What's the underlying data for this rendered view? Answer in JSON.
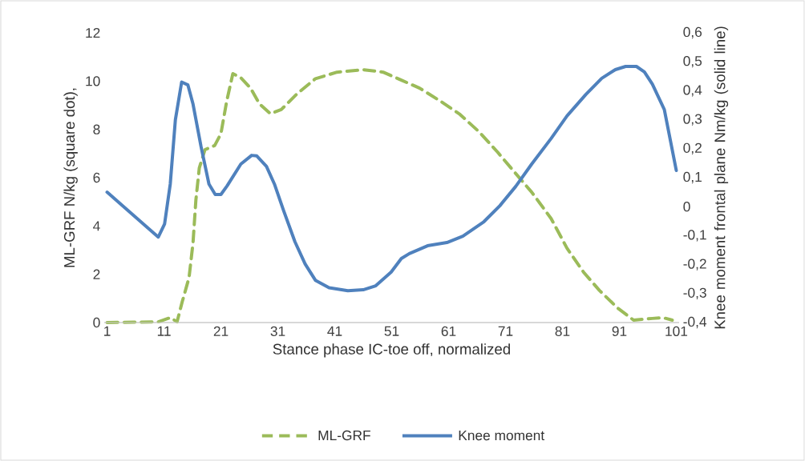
{
  "chart_data": {
    "type": "line",
    "xlabel": "Stance phase IC-toe off, normalized",
    "ylabel": "ML-GRF  N/kg (square dot),",
    "y2label": "Knee moment frontal plane Nm/kg (solid line)",
    "xlim": [
      0.5,
      101.5
    ],
    "xticks": [
      1,
      11,
      21,
      31,
      41,
      51,
      61,
      71,
      81,
      91,
      101
    ],
    "ylim": [
      0,
      12
    ],
    "yticks": [
      0,
      2,
      4,
      6,
      8,
      10,
      12
    ],
    "y2lim": [
      -0.4,
      0.6
    ],
    "y2ticks": [
      {
        "value": -0.4,
        "label": "-0,4"
      },
      {
        "value": -0.3,
        "label": "-0,3"
      },
      {
        "value": -0.2,
        "label": "-0,2"
      },
      {
        "value": -0.1,
        "label": "-0,1"
      },
      0,
      {
        "value": 0.1,
        "label": "0,1"
      },
      {
        "value": 0.2,
        "label": "0,2"
      },
      {
        "value": 0.3,
        "label": "0,3"
      },
      {
        "value": 0.4,
        "label": "0,4"
      },
      {
        "value": 0.5,
        "label": "0,5"
      },
      {
        "value": 0.6,
        "label": "0,6"
      }
    ],
    "legend": "bottom",
    "marker": "none",
    "series": [
      {
        "name": "ML-GRF",
        "color": "#9bbb59",
        "line_style": "dashed",
        "x": [
          1,
          10,
          12.1,
          13.3,
          14.2,
          15.4,
          16.1,
          16.6,
          17.2,
          18.2,
          19.9,
          21,
          22,
          23.1,
          24.5,
          26.2,
          27.8,
          29.7,
          31.6,
          34.4,
          37.6,
          41.4,
          46.1,
          49.5,
          52.7,
          55.9,
          59.3,
          63,
          66.4,
          69.6,
          72.8,
          75.6,
          79,
          81.8,
          84.7,
          87.5,
          90.7,
          93.5,
          96.8,
          98.7,
          100.3
        ],
        "values": [
          0,
          0.03,
          0.2,
          0.03,
          0.86,
          1.86,
          3.31,
          5.07,
          6.4,
          7.16,
          7.33,
          7.82,
          9.15,
          10.31,
          10.14,
          9.71,
          9.05,
          8.65,
          8.82,
          9.48,
          10.1,
          10.37,
          10.47,
          10.37,
          10.04,
          9.71,
          9.21,
          8.62,
          7.89,
          7.06,
          6.17,
          5.4,
          4.31,
          3.08,
          2.09,
          1.33,
          0.6,
          0.1,
          0.17,
          0.2,
          0.1
        ]
      },
      {
        "name": "Knee moment",
        "color": "#4f81bd",
        "line_style": "solid",
        "axis": "y2",
        "x": [
          1,
          10,
          11.1,
          12.1,
          13,
          14.1,
          15.2,
          16.1,
          17.5,
          18.9,
          20,
          21,
          22.1,
          24.5,
          26.4,
          27.3,
          29,
          30.4,
          32,
          34,
          35.8,
          37.6,
          40,
          43.3,
          46,
          48.2,
          50.9,
          52.7,
          54.1,
          57.3,
          60.7,
          63.5,
          67.2,
          70,
          72.8,
          75.6,
          79,
          81.8,
          85.1,
          87.9,
          90.3,
          92.1,
          94,
          95.4,
          96.8,
          98.9,
          101
        ],
        "values": [
          0.05,
          -0.105,
          -0.06,
          0.078,
          0.3,
          0.43,
          0.42,
          0.354,
          0.208,
          0.078,
          0.042,
          0.042,
          0.072,
          0.147,
          0.177,
          0.175,
          0.139,
          0.078,
          -0.013,
          -0.121,
          -0.198,
          -0.254,
          -0.28,
          -0.29,
          -0.287,
          -0.273,
          -0.226,
          -0.179,
          -0.162,
          -0.135,
          -0.124,
          -0.102,
          -0.052,
          0.003,
          0.07,
          0.147,
          0.235,
          0.313,
          0.387,
          0.443,
          0.473,
          0.484,
          0.484,
          0.465,
          0.423,
          0.335,
          0.125
        ]
      }
    ]
  }
}
